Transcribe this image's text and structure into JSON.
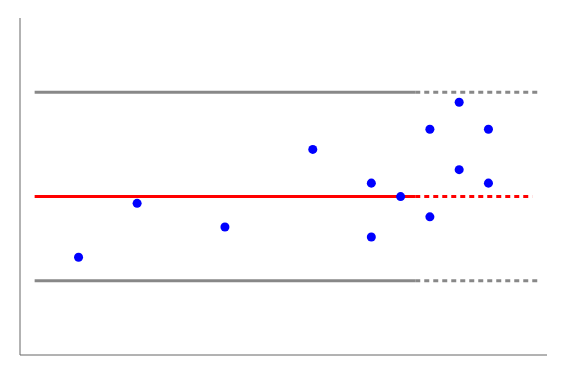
{
  "chart_data": {
    "type": "scatter",
    "x": [
      1983,
      1985,
      1988,
      1991,
      1993,
      1993,
      1994,
      1995,
      1995,
      1996,
      1996,
      1997,
      1997
    ],
    "values": [
      0.195,
      0.275,
      0.24,
      0.355,
      0.225,
      0.305,
      0.285,
      0.385,
      0.255,
      0.425,
      0.325,
      0.385,
      0.305
    ],
    "color": "#0000FF",
    "xlim": [
      1981,
      1999
    ],
    "ylim": [
      0.05,
      0.55
    ],
    "tick_labels": false,
    "lines": [
      {
        "x": [
          1981.5,
          1994.5
        ],
        "y": 0.285,
        "color": "#FF0000",
        "line_style": "solid"
      },
      {
        "x": [
          1994.5,
          1998.5
        ],
        "y": 0.285,
        "color": "#FF0000",
        "line_style": "dashed"
      },
      {
        "x": [
          1981.5,
          1994.5
        ],
        "y": 0.44,
        "color": "#888888",
        "line_style": "solid"
      },
      {
        "x": [
          1994.5,
          1998.8
        ],
        "y": 0.44,
        "color": "#888888",
        "line_style": "dashed"
      },
      {
        "x": [
          1981.5,
          1994.5
        ],
        "y": 0.16,
        "color": "#888888",
        "line_style": "solid"
      },
      {
        "x": [
          1994.5,
          1998.8
        ],
        "y": 0.16,
        "color": "#888888",
        "line_style": "dashed"
      }
    ]
  }
}
